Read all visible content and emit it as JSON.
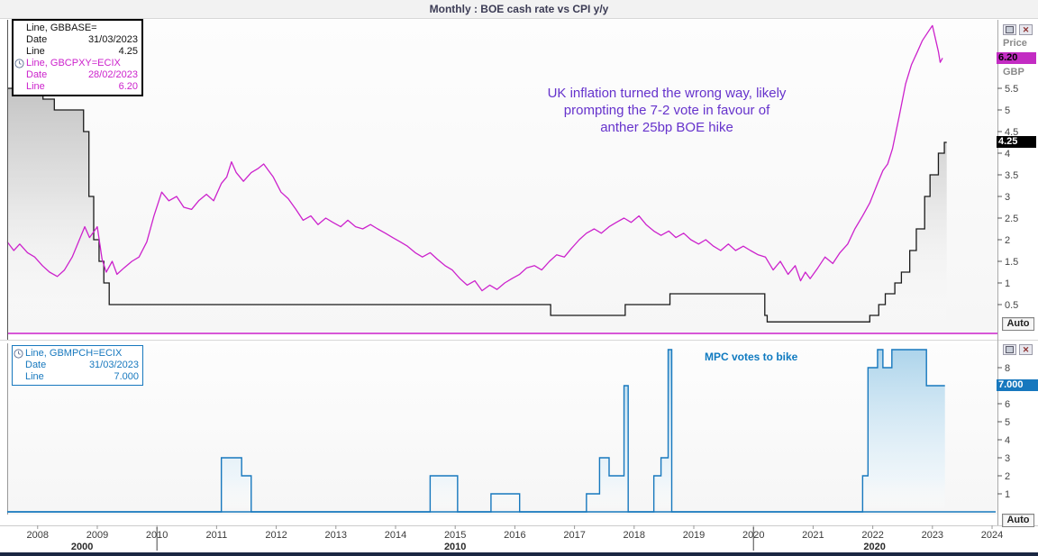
{
  "window": {
    "title": "Monthly : BOE cash rate vs CPI y/y"
  },
  "colors": {
    "cpi_magenta": "#cc22cc",
    "rate_black": "#1a1a1a",
    "mpc_blue": "#1778be",
    "annotation_purple": "#6633cc",
    "annotation_blue": "#0f7ac0",
    "badge_cpi_bg": "#c32cc3",
    "badge_rate_bg": "#000000",
    "badge_mpc_bg": "#1778be"
  },
  "top_panel": {
    "legend": {
      "rows": [
        {
          "label": "Line, GBBASE=",
          "value": ""
        },
        {
          "label": "Date",
          "value": "31/03/2023"
        },
        {
          "label": "Line",
          "value": "4.25"
        },
        {
          "label": "Line, GBCPXY=ECIX",
          "value": ""
        },
        {
          "label": "Date",
          "value": "28/02/2023"
        },
        {
          "label": "Line",
          "value": "6.20"
        }
      ]
    },
    "annotation": {
      "lines": [
        "UK inflation turned the wrong way, likely",
        "prompting the 7-2 vote in favour of",
        "anther 25bp BOE hike"
      ]
    },
    "axis": {
      "price_label": "Price",
      "currency_label": "GBP",
      "badge_cpi": "6.20",
      "badge_rate": "4.25",
      "auto_label": "Auto"
    }
  },
  "bottom_panel": {
    "legend": {
      "rows": [
        {
          "label": "Line, GBMPCH=ECIX",
          "value": ""
        },
        {
          "label": "Date",
          "value": "31/03/2023"
        },
        {
          "label": "Line",
          "value": "7.000"
        }
      ]
    },
    "annotation": {
      "text": "MPC votes to bike"
    },
    "axis": {
      "badge": "7.000",
      "auto_label": "Auto"
    }
  },
  "x_axis": {
    "years": [
      2008,
      2009,
      2010,
      2011,
      2012,
      2013,
      2014,
      2015,
      2016,
      2017,
      2018,
      2019,
      2020,
      2021,
      2022,
      2023,
      2024
    ],
    "decade_labels": [
      "2000",
      "2010",
      "2020"
    ],
    "decade_boundaries": [
      2010,
      2020
    ]
  },
  "chart_data": [
    {
      "id": "boe-rate-vs-cpi",
      "type": "line",
      "title": "Monthly : BOE cash rate vs CPI y/y",
      "ylabel": "Price",
      "currency": "GBP",
      "x_range": [
        2007.49,
        2024.06
      ],
      "ylim": [
        0,
        7
      ],
      "yticks": [
        0.5,
        1,
        1.5,
        2,
        2.5,
        3,
        3.5,
        4,
        4.5,
        5,
        5.5
      ],
      "grid": false,
      "legend_position": "top-left",
      "series": [
        {
          "name": "GBBASE= (BOE cash rate)",
          "type": "step",
          "color": "#1a1a1a",
          "fill": "gray-gradient",
          "last_date": "31/03/2023",
          "last_value": 4.25,
          "end_year": 2023.24,
          "points": [
            [
              2007.49,
              5.5
            ],
            [
              2008.09,
              5.25
            ],
            [
              2008.28,
              5.0
            ],
            [
              2008.77,
              4.5
            ],
            [
              2008.86,
              3.0
            ],
            [
              2008.94,
              2.0
            ],
            [
              2009.03,
              1.5
            ],
            [
              2009.11,
              1.0
            ],
            [
              2009.2,
              0.5
            ],
            [
              2016.6,
              0.25
            ],
            [
              2017.85,
              0.5
            ],
            [
              2018.6,
              0.75
            ],
            [
              2020.19,
              0.25
            ],
            [
              2020.23,
              0.1
            ],
            [
              2021.95,
              0.25
            ],
            [
              2022.1,
              0.5
            ],
            [
              2022.21,
              0.75
            ],
            [
              2022.37,
              1.0
            ],
            [
              2022.48,
              1.25
            ],
            [
              2022.62,
              1.75
            ],
            [
              2022.73,
              2.25
            ],
            [
              2022.87,
              3.0
            ],
            [
              2022.96,
              3.5
            ],
            [
              2023.1,
              4.0
            ],
            [
              2023.2,
              4.25
            ]
          ]
        },
        {
          "name": "GBCPXY=ECIX (UK CPI y/y)",
          "type": "line",
          "color": "#cc22cc",
          "last_date": "28/02/2023",
          "last_value": 6.2,
          "points": [
            [
              2007.49,
              1.95
            ],
            [
              2007.6,
              1.75
            ],
            [
              2007.7,
              1.9
            ],
            [
              2007.83,
              1.7
            ],
            [
              2007.95,
              1.6
            ],
            [
              2008.08,
              1.4
            ],
            [
              2008.2,
              1.25
            ],
            [
              2008.33,
              1.15
            ],
            [
              2008.45,
              1.3
            ],
            [
              2008.58,
              1.6
            ],
            [
              2008.7,
              2.0
            ],
            [
              2008.79,
              2.3
            ],
            [
              2008.87,
              2.05
            ],
            [
              2008.95,
              2.2
            ],
            [
              2009.0,
              2.3
            ],
            [
              2009.08,
              1.55
            ],
            [
              2009.15,
              1.25
            ],
            [
              2009.25,
              1.5
            ],
            [
              2009.33,
              1.2
            ],
            [
              2009.45,
              1.35
            ],
            [
              2009.58,
              1.5
            ],
            [
              2009.7,
              1.6
            ],
            [
              2009.83,
              1.95
            ],
            [
              2009.95,
              2.55
            ],
            [
              2010.08,
              3.1
            ],
            [
              2010.2,
              2.9
            ],
            [
              2010.33,
              3.0
            ],
            [
              2010.45,
              2.75
            ],
            [
              2010.58,
              2.7
            ],
            [
              2010.7,
              2.9
            ],
            [
              2010.83,
              3.05
            ],
            [
              2010.95,
              2.9
            ],
            [
              2011.08,
              3.3
            ],
            [
              2011.17,
              3.45
            ],
            [
              2011.25,
              3.8
            ],
            [
              2011.33,
              3.55
            ],
            [
              2011.45,
              3.35
            ],
            [
              2011.58,
              3.55
            ],
            [
              2011.7,
              3.65
            ],
            [
              2011.79,
              3.75
            ],
            [
              2011.87,
              3.6
            ],
            [
              2011.95,
              3.45
            ],
            [
              2012.08,
              3.1
            ],
            [
              2012.2,
              2.95
            ],
            [
              2012.33,
              2.7
            ],
            [
              2012.45,
              2.45
            ],
            [
              2012.58,
              2.55
            ],
            [
              2012.7,
              2.35
            ],
            [
              2012.83,
              2.5
            ],
            [
              2012.95,
              2.4
            ],
            [
              2013.08,
              2.3
            ],
            [
              2013.2,
              2.45
            ],
            [
              2013.33,
              2.3
            ],
            [
              2013.45,
              2.25
            ],
            [
              2013.58,
              2.35
            ],
            [
              2013.7,
              2.25
            ],
            [
              2013.83,
              2.15
            ],
            [
              2013.95,
              2.05
            ],
            [
              2014.08,
              1.95
            ],
            [
              2014.2,
              1.85
            ],
            [
              2014.33,
              1.7
            ],
            [
              2014.45,
              1.6
            ],
            [
              2014.58,
              1.7
            ],
            [
              2014.7,
              1.55
            ],
            [
              2014.83,
              1.4
            ],
            [
              2014.95,
              1.3
            ],
            [
              2015.08,
              1.1
            ],
            [
              2015.2,
              0.95
            ],
            [
              2015.33,
              1.05
            ],
            [
              2015.45,
              0.82
            ],
            [
              2015.58,
              0.95
            ],
            [
              2015.7,
              0.85
            ],
            [
              2015.83,
              1.0
            ],
            [
              2015.95,
              1.1
            ],
            [
              2016.08,
              1.2
            ],
            [
              2016.2,
              1.35
            ],
            [
              2016.33,
              1.4
            ],
            [
              2016.45,
              1.3
            ],
            [
              2016.58,
              1.5
            ],
            [
              2016.7,
              1.65
            ],
            [
              2016.83,
              1.6
            ],
            [
              2016.95,
              1.8
            ],
            [
              2017.08,
              2.0
            ],
            [
              2017.2,
              2.15
            ],
            [
              2017.33,
              2.25
            ],
            [
              2017.45,
              2.15
            ],
            [
              2017.58,
              2.3
            ],
            [
              2017.7,
              2.4
            ],
            [
              2017.83,
              2.5
            ],
            [
              2017.95,
              2.4
            ],
            [
              2018.08,
              2.55
            ],
            [
              2018.2,
              2.35
            ],
            [
              2018.33,
              2.2
            ],
            [
              2018.45,
              2.1
            ],
            [
              2018.58,
              2.2
            ],
            [
              2018.7,
              2.05
            ],
            [
              2018.83,
              2.15
            ],
            [
              2018.95,
              2.0
            ],
            [
              2019.08,
              1.9
            ],
            [
              2019.2,
              2.0
            ],
            [
              2019.33,
              1.85
            ],
            [
              2019.45,
              1.75
            ],
            [
              2019.58,
              1.9
            ],
            [
              2019.7,
              1.75
            ],
            [
              2019.83,
              1.85
            ],
            [
              2019.95,
              1.75
            ],
            [
              2020.08,
              1.65
            ],
            [
              2020.2,
              1.6
            ],
            [
              2020.33,
              1.3
            ],
            [
              2020.45,
              1.5
            ],
            [
              2020.58,
              1.2
            ],
            [
              2020.7,
              1.4
            ],
            [
              2020.79,
              1.05
            ],
            [
              2020.87,
              1.25
            ],
            [
              2020.95,
              1.1
            ],
            [
              2021.08,
              1.35
            ],
            [
              2021.2,
              1.6
            ],
            [
              2021.33,
              1.45
            ],
            [
              2021.45,
              1.7
            ],
            [
              2021.58,
              1.9
            ],
            [
              2021.7,
              2.25
            ],
            [
              2021.83,
              2.55
            ],
            [
              2021.95,
              2.85
            ],
            [
              2022.08,
              3.3
            ],
            [
              2022.17,
              3.6
            ],
            [
              2022.25,
              3.75
            ],
            [
              2022.33,
              4.1
            ],
            [
              2022.45,
              4.9
            ],
            [
              2022.55,
              5.6
            ],
            [
              2022.65,
              6.05
            ],
            [
              2022.75,
              6.35
            ],
            [
              2022.83,
              6.6
            ],
            [
              2022.95,
              6.85
            ],
            [
              2023.0,
              6.95
            ],
            [
              2023.05,
              6.65
            ],
            [
              2023.1,
              6.35
            ],
            [
              2023.13,
              6.1
            ],
            [
              2023.17,
              6.2
            ]
          ]
        }
      ]
    },
    {
      "id": "mpc-votes-to-hike",
      "type": "area",
      "x_range": [
        2007.49,
        2024.06
      ],
      "ylim": [
        0,
        9.2
      ],
      "yticks": [
        1,
        2,
        3,
        4,
        5,
        6,
        7,
        8
      ],
      "grid": false,
      "series": [
        {
          "name": "GBMPCH=ECIX (MPC votes to hike)",
          "type": "step-area",
          "color": "#1778be",
          "fill": "blue-gradient",
          "last_date": "31/03/2023",
          "last_value": 7.0,
          "end_year": 2023.21,
          "points": [
            [
              2007.49,
              0
            ],
            [
              2011.08,
              3
            ],
            [
              2011.42,
              2
            ],
            [
              2011.58,
              0
            ],
            [
              2014.58,
              2
            ],
            [
              2015.04,
              0
            ],
            [
              2015.6,
              1
            ],
            [
              2016.08,
              0
            ],
            [
              2017.2,
              1
            ],
            [
              2017.42,
              3
            ],
            [
              2017.58,
              2
            ],
            [
              2017.83,
              7
            ],
            [
              2017.9,
              0
            ],
            [
              2018.33,
              2
            ],
            [
              2018.45,
              3
            ],
            [
              2018.57,
              9
            ],
            [
              2018.63,
              0
            ],
            [
              2021.83,
              2
            ],
            [
              2021.92,
              8
            ],
            [
              2022.08,
              9
            ],
            [
              2022.17,
              8
            ],
            [
              2022.32,
              9
            ],
            [
              2022.9,
              7
            ]
          ]
        }
      ]
    }
  ]
}
